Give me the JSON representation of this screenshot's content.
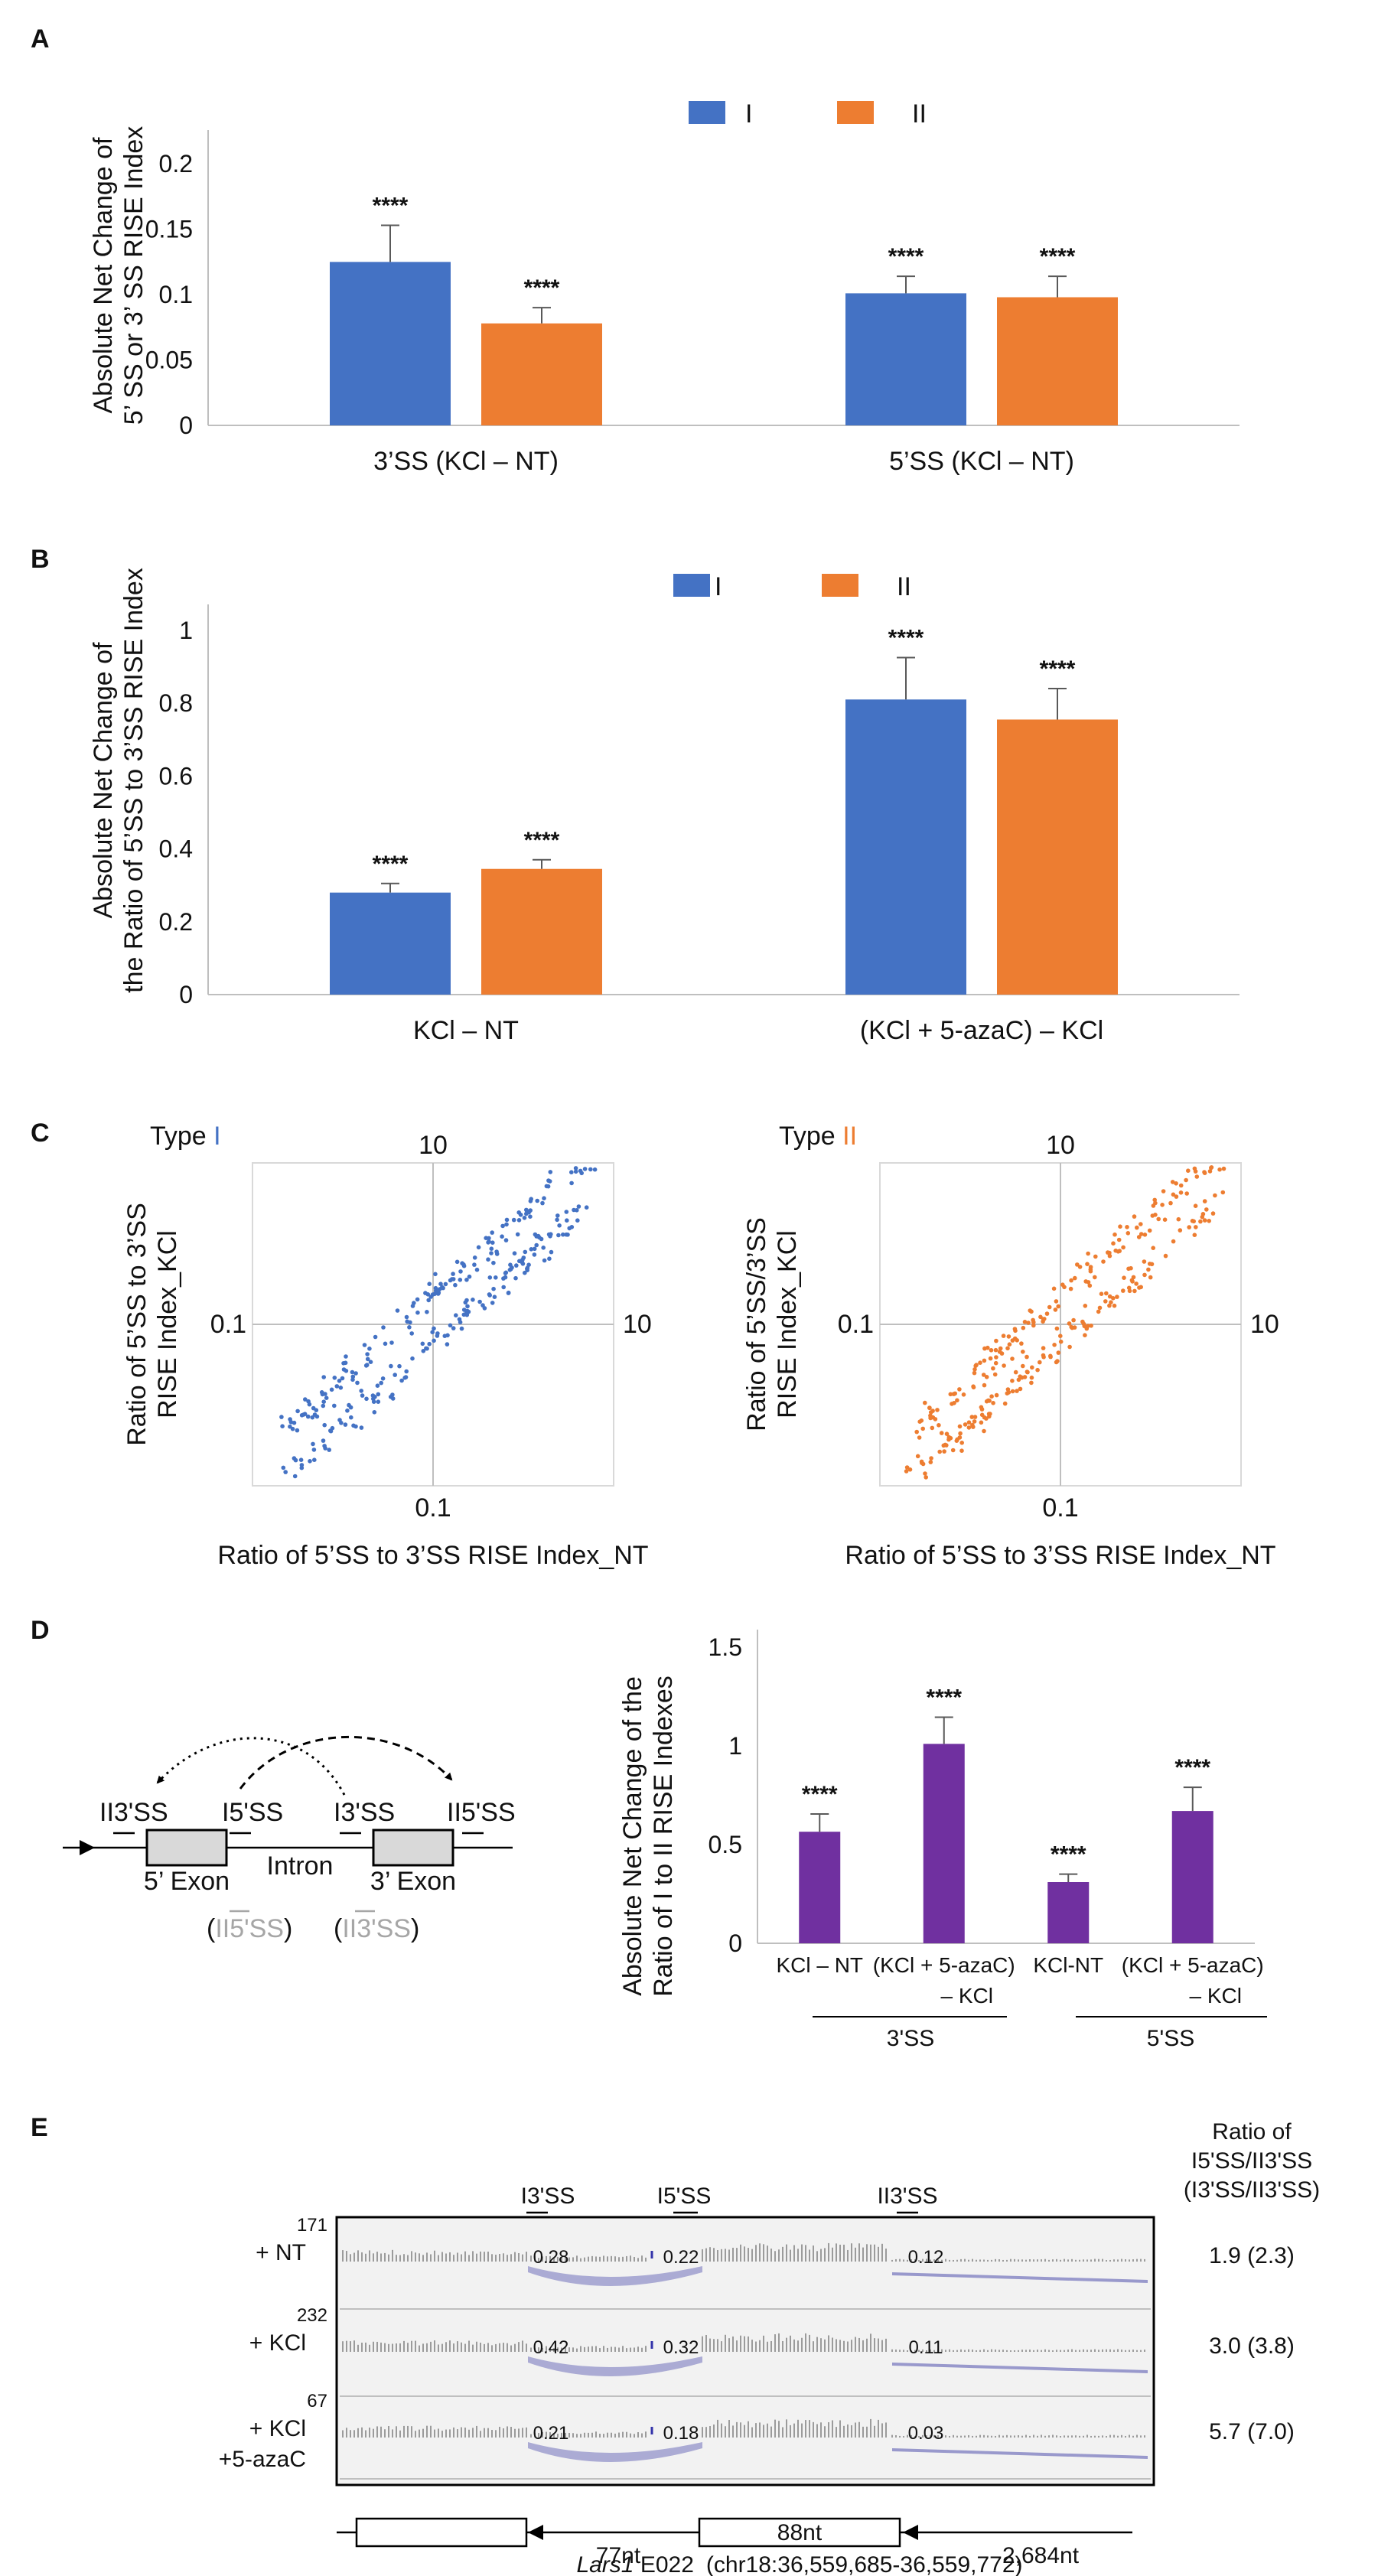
{
  "colors": {
    "type_I": "#4472c4",
    "type_II": "#ed7d31",
    "purple": "#7030a0",
    "axis": "#bfbfbf",
    "dark": "#000000",
    "gray": "#a6a6a6",
    "sashimi": "#9999cc"
  },
  "panel_letters": {
    "a": "A",
    "b": "B",
    "c": "C",
    "d": "D",
    "e": "E"
  },
  "chart_data": [
    {
      "id": "A",
      "type": "bar",
      "categories": [
        "3’SS (KCl – NT)",
        "5’SS (KCl – NT)"
      ],
      "series": [
        {
          "name": "I",
          "values": [
            0.125,
            0.101
          ],
          "errors": [
            0.028,
            0.013
          ]
        },
        {
          "name": "II",
          "values": [
            0.078,
            0.098
          ],
          "errors": [
            0.012,
            0.016
          ]
        }
      ],
      "significance": [
        [
          "****",
          "****"
        ],
        [
          "****",
          "****"
        ]
      ],
      "yticks": [
        "0",
        "0.05",
        "0.1",
        "0.15",
        "0.2"
      ],
      "ylim": [
        0,
        0.22
      ],
      "ylabel_lines": [
        "Absolute Net Change of",
        "5’ SS or 3’ SS RISE Index"
      ],
      "legend": [
        "I",
        "II"
      ]
    },
    {
      "id": "B",
      "type": "bar",
      "categories": [
        "KCl – NT",
        "(KCl + 5-azaC) – KCl"
      ],
      "series": [
        {
          "name": "I",
          "values": [
            0.28,
            0.81
          ],
          "errors": [
            0.025,
            0.115
          ]
        },
        {
          "name": "II",
          "values": [
            0.345,
            0.755
          ],
          "errors": [
            0.025,
            0.085
          ]
        }
      ],
      "significance": [
        [
          "****",
          "****"
        ],
        [
          "****",
          "****"
        ]
      ],
      "yticks": [
        "0",
        "0.2",
        "0.4",
        "0.6",
        "0.8",
        "1"
      ],
      "ylim": [
        0,
        1.05
      ],
      "ylabel_lines": [
        "Absolute Net Change of",
        "the Ratio of 5’SS to 3’SS RISE Index"
      ],
      "legend": [
        "I",
        "II"
      ]
    },
    {
      "id": "C-left",
      "type": "scatter",
      "title_prefix": "Type ",
      "title_type": "I",
      "top_tick": "10",
      "right_tick": "10",
      "left_tick": "0.1",
      "bottom_tick": "0.1",
      "xlabel": "Ratio of 5’SS to 3’SS RISE Index_NT",
      "ylabel_lines": [
        "Ratio of 5’SS to 3’SS",
        "RISE Index_KCl"
      ],
      "x_log10_range": [
        -1.6,
        1.6
      ],
      "y_log10_range": [
        -1.6,
        1.6
      ],
      "n_points": 300
    },
    {
      "id": "C-right",
      "type": "scatter",
      "title_prefix": "Type ",
      "title_type": "II",
      "top_tick": "10",
      "right_tick": "10",
      "left_tick": "0.1",
      "bottom_tick": "0.1",
      "xlabel": "Ratio of 5’SS to 3’SS RISE Index_NT",
      "ylabel_lines": [
        "Ratio of 5’SS/3’SS",
        "RISE Index_KCl"
      ],
      "x_log10_range": [
        -1.6,
        1.6
      ],
      "y_log10_range": [
        -1.6,
        1.6
      ],
      "n_points": 300
    },
    {
      "id": "D",
      "type": "bar",
      "categories": [
        {
          "line1": "KCl – NT",
          "line2": ""
        },
        {
          "line1": "(KCl + 5-azaC)",
          "line2": "– KCl"
        },
        {
          "line1": "KCl-NT",
          "line2": ""
        },
        {
          "line1": "(KCl + 5-azaC)",
          "line2": "– KCl"
        }
      ],
      "values": [
        0.565,
        1.01,
        0.31,
        0.67
      ],
      "errors": [
        0.09,
        0.135,
        0.04,
        0.12
      ],
      "significance": [
        "****",
        "****",
        "****",
        "****"
      ],
      "groups": [
        "3'SS",
        "5'SS"
      ],
      "yticks": [
        "0",
        "0.5",
        "1",
        "1.5"
      ],
      "ylim": [
        0,
        1.55
      ],
      "ylabel_lines": [
        "Absolute Net Change of the",
        "Ratio of I to II RISE Indexes"
      ]
    }
  ],
  "diagram_d": {
    "ii3ss": "II3'SS",
    "i5ss": "I5'SS",
    "i3ss": "I3'SS",
    "ii5ss": "II5'SS",
    "exon5": "5’ Exon",
    "intron": "Intron",
    "exon3": "3’ Exon",
    "paren_left_open": "(",
    "paren_left_label": "II5'SS",
    "paren_left_close": ")",
    "paren_right_open": "(",
    "paren_right_label": "II3'SS",
    "paren_right_close": ")"
  },
  "panel_e": {
    "site_labels": [
      "I3'SS",
      "I5'SS",
      "II3'SS"
    ],
    "tracks": [
      {
        "condition_lines": [
          "+ NT"
        ],
        "scale": "171",
        "junctions": [
          "0.28",
          "0.22",
          "0.12"
        ],
        "ratio": "1.9 (2.3)"
      },
      {
        "condition_lines": [
          "+ KCl"
        ],
        "scale": "232",
        "junctions": [
          "0.42",
          "0.32",
          "0.11"
        ],
        "ratio": "3.0 (3.8)"
      },
      {
        "condition_lines": [
          "+ KCl",
          "+5-azaC"
        ],
        "scale": "67",
        "junctions": [
          "0.21",
          "0.18",
          "0.03"
        ],
        "ratio": "5.7 (7.0)"
      }
    ],
    "ratio_header": [
      "Ratio of",
      "I5'SS/II3'SS",
      "(I3'SS/II3'SS)"
    ],
    "gene_model": {
      "left_nt": "77nt",
      "exon_nt": "88nt",
      "right_nt": "2,684nt"
    },
    "gene_name": "Lars1",
    "exon_id": " E022",
    "coords": "(chr18:36,559,685-36,559,772)"
  }
}
